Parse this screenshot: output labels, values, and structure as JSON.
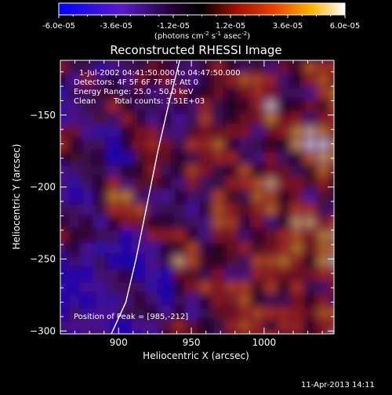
{
  "colorbar": {
    "ticks": [
      "-6.0e-05",
      "-3.6e-05",
      "-1.2e-05",
      "1.2e-05",
      "3.6e-05",
      "6.0e-05"
    ],
    "units_prefix": "(photons cm",
    "units_exp1": "-2",
    "units_mid": " s",
    "units_exp2": "-1",
    "units_suffix": " asec",
    "units_exp3": "-2",
    "units_close": ")"
  },
  "chart_data": {
    "type": "heatmap",
    "title": "Reconstructed RHESSI Image",
    "xlabel": "Heliocentric X (arcsec)",
    "ylabel": "Heliocentric Y (arcsec)",
    "xlim": [
      860,
      1048
    ],
    "ylim": [
      -302,
      -112
    ],
    "x_ticks": [
      900,
      950,
      1000
    ],
    "y_ticks": [
      -150,
      -200,
      -250,
      -300
    ],
    "color_range": [
      -6e-05,
      6e-05
    ],
    "colormap": "blue-purple-black-red-orange-yellow-white",
    "annotations": {
      "time": "1-Jul-2002 04:41:50.000 to 04:47:50.000",
      "detectors": "Detectors: 4F 5F 6F 7F 8F, Att 0",
      "energy": "Energy Range: 25.0 - 50.0 keV",
      "method": "Clean",
      "counts": "Total counts: 3.51E+03",
      "peak": "Position of Peak = [985,-212]"
    },
    "limb_curve": [
      [
        895,
        -302
      ],
      [
        905,
        -280
      ],
      [
        912,
        -250
      ],
      [
        920,
        -210
      ],
      [
        927,
        -175
      ],
      [
        935,
        -140
      ],
      [
        942,
        -112
      ]
    ]
  },
  "footer": {
    "date": "11-Apr-2013 14:11"
  }
}
